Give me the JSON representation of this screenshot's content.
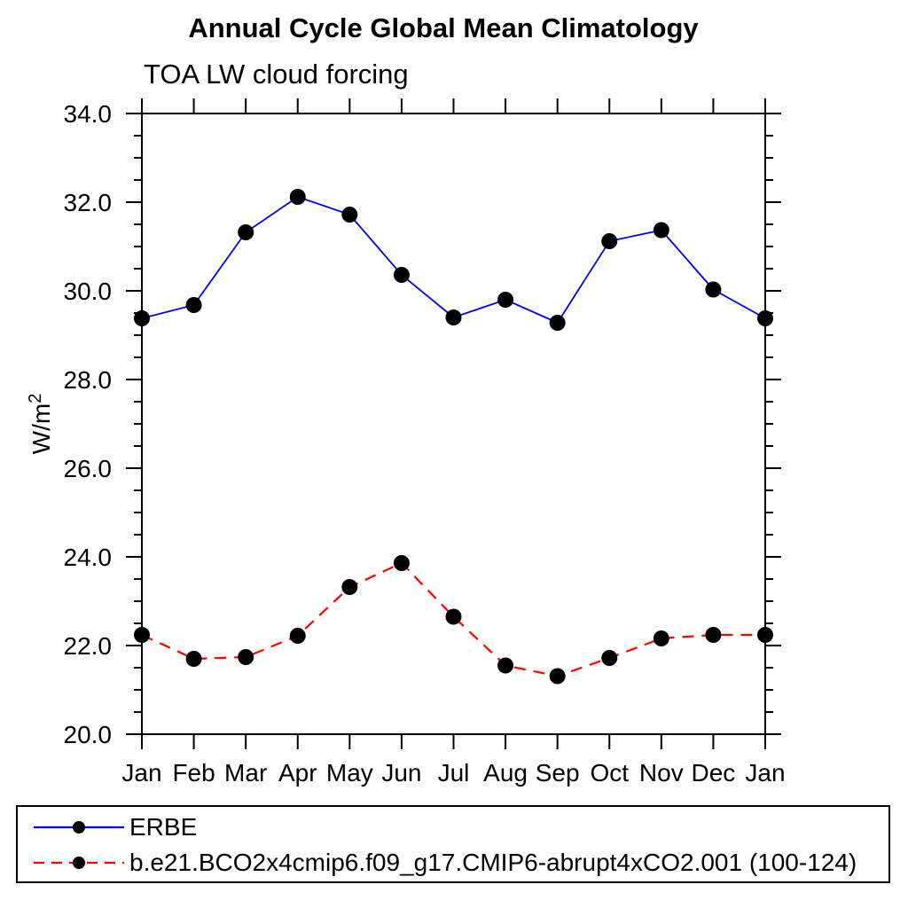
{
  "title": "Annual Cycle Global Mean Climatology",
  "subtitle": "TOA LW cloud forcing",
  "ylabel_base": "W/m",
  "ylabel_exp": "2",
  "colors": {
    "erbe_line": "#0000ff",
    "model_line": "#ff0000",
    "marker": "#000000",
    "axis": "#000000",
    "background": "#ffffff"
  },
  "legend": [
    {
      "label": "ERBE",
      "style": "solid",
      "color": "#0000ff"
    },
    {
      "label": "b.e21.BCO2x4cmip6.f09_g17.CMIP6-abrupt4xCO2.001 (100-124)",
      "style": "dashed",
      "color": "#ff0000"
    }
  ],
  "chart_data": {
    "type": "line",
    "title": "Annual Cycle Global Mean Climatology",
    "subtitle": "TOA LW cloud forcing",
    "xlabel": "",
    "ylabel": "W/m^2",
    "categories": [
      "Jan",
      "Feb",
      "Mar",
      "Apr",
      "May",
      "Jun",
      "Jul",
      "Aug",
      "Sep",
      "Oct",
      "Nov",
      "Dec",
      "Jan"
    ],
    "ylim": [
      20.0,
      34.0
    ],
    "ytick_interval": 2.0,
    "yminor_interval": 0.5,
    "ytick_labels": [
      "20.0",
      "22.0",
      "24.0",
      "26.0",
      "28.0",
      "30.0",
      "32.0",
      "34.0"
    ],
    "grid": false,
    "legend_position": "bottom",
    "series": [
      {
        "name": "ERBE",
        "color": "#0000ff",
        "style": "solid",
        "marker": "filled-circle",
        "values": [
          29.38,
          29.68,
          31.32,
          32.12,
          31.72,
          30.36,
          29.4,
          29.8,
          29.28,
          31.12,
          31.37,
          30.03,
          29.38
        ]
      },
      {
        "name": "b.e21.BCO2x4cmip6.f09_g17.CMIP6-abrupt4xCO2.001 (100-124)",
        "color": "#ff0000",
        "style": "dashed",
        "marker": "filled-circle",
        "values": [
          22.24,
          21.7,
          21.74,
          22.22,
          23.32,
          23.86,
          22.65,
          21.55,
          21.31,
          21.72,
          22.16,
          22.24,
          22.24
        ]
      }
    ]
  }
}
